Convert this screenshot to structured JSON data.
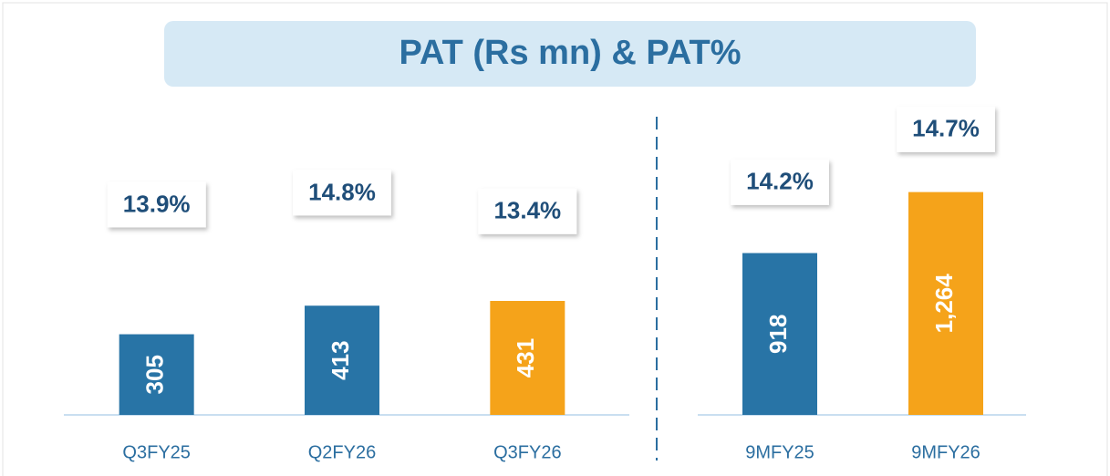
{
  "chart_data": [
    {
      "type": "bar",
      "title": "PAT (Rs mn) & PAT%",
      "categories": [
        "Q3FY25",
        "Q2FY26",
        "Q3FY26"
      ],
      "series": [
        {
          "values": [
            305,
            413,
            431
          ],
          "value_labels": [
            "305",
            "413",
            "431"
          ],
          "colors": [
            "#2874a6",
            "#2874a6",
            "#f5a31a"
          ]
        },
        {
          "axis": "y2",
          "values": [
            13.9,
            14.8,
            13.4
          ],
          "value_labels": [
            "13.9%",
            "14.8%",
            "13.4%"
          ]
        }
      ],
      "ylim": [
        0,
        1000
      ],
      "y2lim": [
        -2,
        18
      ]
    },
    {
      "type": "bar",
      "categories": [
        "9MFY25",
        "9MFY26"
      ],
      "series": [
        {
          "values": [
            918,
            1264
          ],
          "value_labels": [
            "918",
            "1,264"
          ],
          "colors": [
            "#2874a6",
            "#f5a31a"
          ]
        },
        {
          "axis": "y2",
          "values": [
            14.2,
            14.7
          ],
          "value_labels": [
            "14.2%",
            "14.7%"
          ]
        }
      ],
      "ylim": [
        0,
        1500
      ],
      "y2lim": [
        12,
        14.5
      ]
    }
  ]
}
